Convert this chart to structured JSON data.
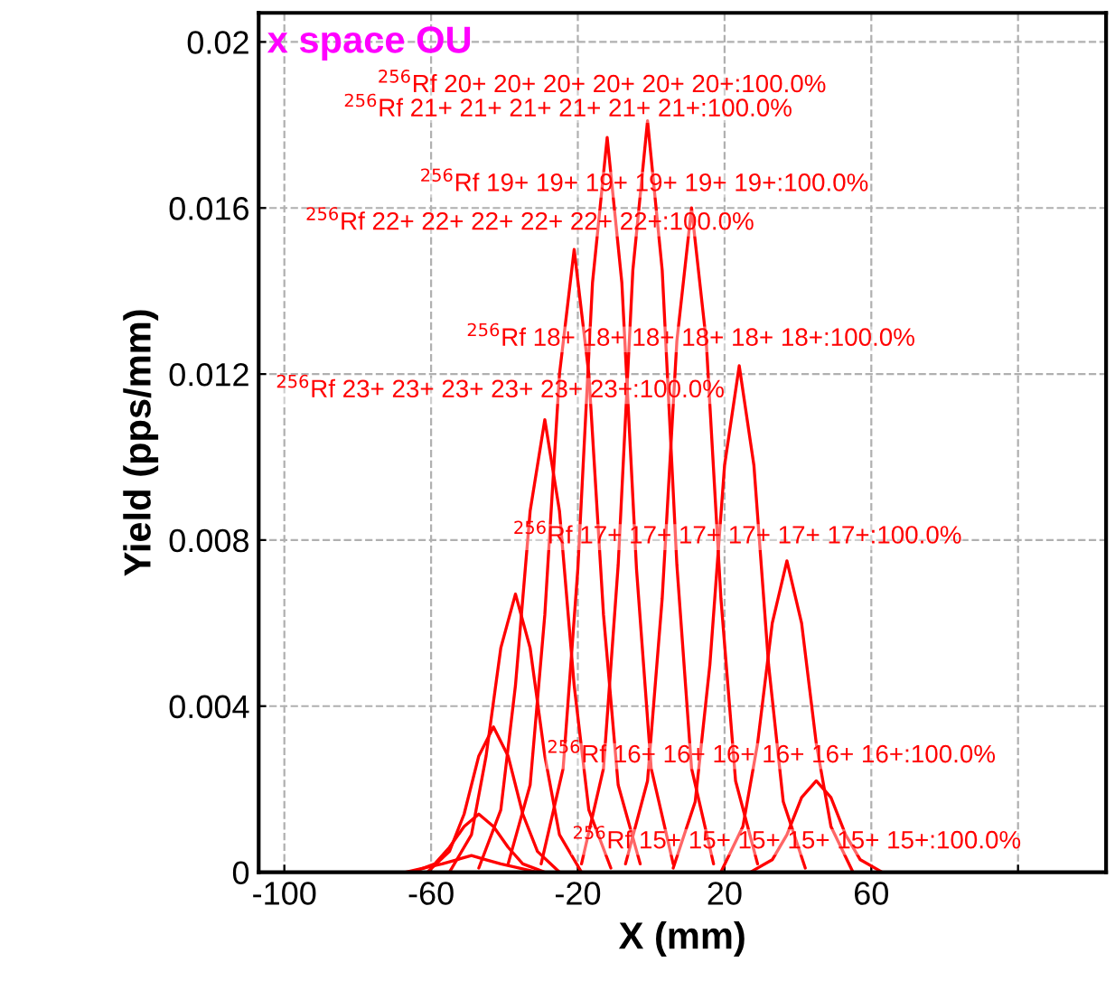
{
  "chart_data": {
    "type": "line",
    "title": "x space OU",
    "xlabel": "X (mm)",
    "ylabel": "Yield (pps/mm)",
    "xlim": [
      -107,
      124
    ],
    "ylim": [
      0,
      0.0207
    ],
    "xticks": [
      -100,
      -60,
      -20,
      20,
      60,
      {
        "value": 100,
        "label": null
      }
    ],
    "yticks": [
      0,
      0.004,
      0.008,
      0.012,
      0.016,
      0.02
    ],
    "grid": true,
    "legend": false,
    "marker": "none",
    "line_style": "solid",
    "series": [
      {
        "color": "#ff0000",
        "x": [
          -67,
          -57,
          -53,
          -49,
          -45,
          -41,
          -31
        ],
        "values": [
          0,
          0.0002,
          0.0003,
          0.0004,
          0.0003,
          0.0002,
          0
        ]
      },
      {
        "color": "#ff0000",
        "x": [
          -65,
          -59,
          -55,
          -51,
          -47,
          -43,
          -39,
          -35,
          -29
        ],
        "values": [
          0,
          0.0002,
          0.0006,
          0.0011,
          0.0014,
          0.0011,
          0.0006,
          0.0002,
          0
        ]
      },
      {
        "color": "#ff0000",
        "x": [
          -61,
          -55,
          -51,
          -47,
          -43,
          -39,
          -35,
          -31,
          -25
        ],
        "values": [
          0,
          0.0005,
          0.0014,
          0.0028,
          0.0035,
          0.0028,
          0.0014,
          0.0005,
          0
        ]
      },
      {
        "color": "#ff0000",
        "x": [
          -55,
          -49,
          -45,
          -41,
          -37,
          -33,
          -29,
          -25,
          -19
        ],
        "values": [
          0,
          0.0009,
          0.0028,
          0.0054,
          0.0067,
          0.0054,
          0.0028,
          0.0009,
          0
        ]
      },
      {
        "color": "#ff0000",
        "x": [
          -47,
          -41,
          -37,
          -33,
          -29,
          -25,
          -21,
          -17,
          -11
        ],
        "values": [
          0.0001,
          0.0015,
          0.0045,
          0.0087,
          0.0109,
          0.0087,
          0.0045,
          0.0015,
          0.0001
        ]
      },
      {
        "color": "#ff0000",
        "x": [
          -39,
          -33,
          -29,
          -25,
          -21,
          -17,
          -13,
          -9,
          -3
        ],
        "values": [
          0.0002,
          0.0021,
          0.0062,
          0.012,
          0.015,
          0.012,
          0.0062,
          0.0021,
          0.0002
        ]
      },
      {
        "color": "#ff0000",
        "x": [
          -30,
          -24,
          -20,
          -16,
          -12,
          -8,
          -4,
          0,
          6
        ],
        "values": [
          0.0002,
          0.0025,
          0.0073,
          0.0142,
          0.0177,
          0.0142,
          0.0073,
          0.0025,
          0.0002
        ]
      },
      {
        "color": "#ff0000",
        "x": [
          -19,
          -13,
          -9,
          -5,
          -1,
          3,
          7,
          11,
          17
        ],
        "values": [
          0.0002,
          0.0025,
          0.0074,
          0.0145,
          0.0181,
          0.0145,
          0.0074,
          0.0025,
          0.0002
        ]
      },
      {
        "color": "#ff0000",
        "x": [
          -7,
          -1,
          3,
          7,
          11,
          15,
          19,
          23,
          29
        ],
        "values": [
          0.0002,
          0.0022,
          0.0066,
          0.0128,
          0.016,
          0.0128,
          0.0066,
          0.0022,
          0.0002
        ]
      },
      {
        "color": "#ff0000",
        "x": [
          6,
          12,
          16,
          20,
          24,
          28,
          32,
          36,
          42
        ],
        "values": [
          0.0001,
          0.0017,
          0.005,
          0.0098,
          0.0122,
          0.0098,
          0.005,
          0.0017,
          0.0001
        ]
      },
      {
        "color": "#ff0000",
        "x": [
          19,
          25,
          29,
          33,
          37,
          41,
          45,
          49,
          55
        ],
        "values": [
          0,
          0.0011,
          0.0031,
          0.006,
          0.0075,
          0.006,
          0.0031,
          0.0011,
          0
        ]
      },
      {
        "color": "#ff0000",
        "x": [
          27,
          33,
          37,
          41,
          45,
          49,
          53,
          57,
          63
        ],
        "values": [
          0,
          0.0003,
          0.0009,
          0.0018,
          0.0022,
          0.0018,
          0.0009,
          0.0003,
          0
        ]
      }
    ],
    "annotations": [
      "$^{256}$Rf 20+ 20+ 20+ 20+ 20+ 20+:100.0%",
      "$^{256}$Rf 21+ 21+ 21+ 21+ 21+ 21+:100.0%",
      "$^{256}$Rf 19+ 19+ 19+ 19+ 19+ 19+:100.0%",
      "$^{256}$Rf 22+ 22+ 22+ 22+ 22+ 22+:100.0%",
      "$^{256}$Rf 18+ 18+ 18+ 18+ 18+ 18+:100.0%",
      "$^{256}$Rf 23+ 23+ 23+ 23+ 23+ 23+:100.0%",
      "$^{256}$Rf 17+ 17+ 17+ 17+ 17+ 17+:100.0%",
      "$^{256}$Rf 16+ 16+ 16+ 16+ 16+ 16+:100.0%",
      "$^{256}$Rf 15+ 15+ 15+ 15+ 15+ 15+:100.0%"
    ]
  }
}
